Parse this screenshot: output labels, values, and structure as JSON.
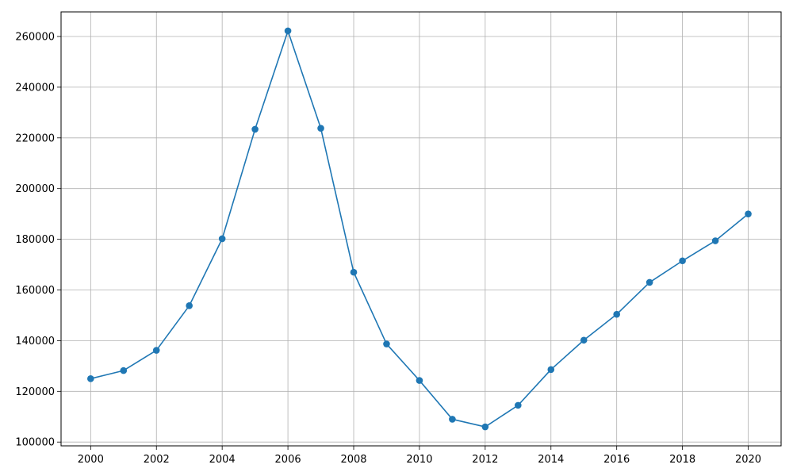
{
  "chart_data": {
    "type": "line",
    "title": "",
    "xlabel": "",
    "ylabel": "",
    "x": [
      2000,
      2001,
      2002,
      2003,
      2004,
      2005,
      2006,
      2007,
      2008,
      2009,
      2010,
      2011,
      2012,
      2013,
      2014,
      2015,
      2016,
      2017,
      2018,
      2019,
      2020
    ],
    "series": [
      {
        "values": [
          125000,
          128200,
          136200,
          153800,
          180200,
          223400,
          262200,
          223800,
          167000,
          138700,
          124300,
          109000,
          106000,
          114500,
          128600,
          140200,
          150400,
          163000,
          171500,
          179400,
          190000
        ],
        "color": "#1f77b4",
        "marker": "circle"
      }
    ],
    "xlim": [
      1999.1,
      2021.0
    ],
    "ylim": [
      98500,
      269700
    ],
    "x_ticks": [
      2000,
      2002,
      2004,
      2006,
      2008,
      2010,
      2012,
      2014,
      2016,
      2018,
      2020
    ],
    "y_ticks": [
      100000,
      120000,
      140000,
      160000,
      180000,
      200000,
      220000,
      240000,
      260000
    ],
    "x_tick_labels": [
      "2000",
      "2002",
      "2004",
      "2006",
      "2008",
      "2010",
      "2012",
      "2014",
      "2016",
      "2018",
      "2020"
    ],
    "y_tick_labels": [
      "100000",
      "120000",
      "140000",
      "160000",
      "180000",
      "200000",
      "220000",
      "240000",
      "260000"
    ],
    "grid": true,
    "grid_color": "#b0b0b0",
    "axes_color": "#000000"
  }
}
